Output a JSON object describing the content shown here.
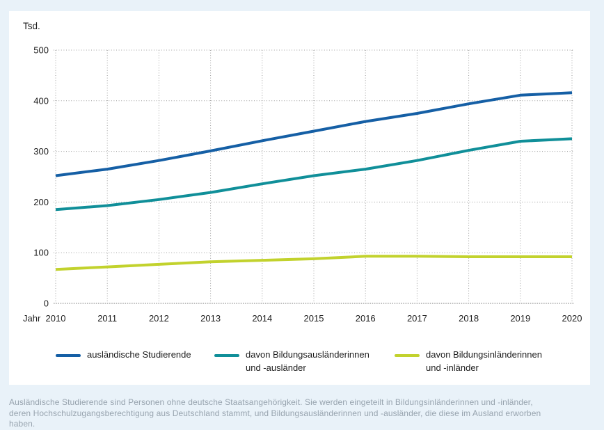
{
  "chart_data": {
    "type": "line",
    "title": "",
    "unit_label": "Tsd.",
    "x_axis_label": "Jahr",
    "categories": [
      "2010",
      "2011",
      "2012",
      "2013",
      "2014",
      "2015",
      "2016",
      "2017",
      "2018",
      "2019",
      "2020"
    ],
    "yticks": [
      0,
      100,
      200,
      300,
      400,
      500
    ],
    "ylim": [
      0,
      500
    ],
    "grid": "dotted",
    "legend_position": "bottom",
    "series": [
      {
        "name": "ausländische Studierende",
        "slug": "auslaendische-studierende",
        "color": "#155fa5",
        "values": [
          252,
          265,
          282,
          301,
          321,
          340,
          359,
          375,
          394,
          411,
          416
        ]
      },
      {
        "name": "davon Bildungsausländerinnen und -ausländer",
        "slug": "bildungsauslaenderinnen-und-auslaender",
        "color": "#108f99",
        "values": [
          185,
          193,
          205,
          219,
          236,
          252,
          265,
          282,
          302,
          320,
          325
        ]
      },
      {
        "name": "davon Bildungsinländerinnen und -inländer",
        "slug": "bildungsinlaenderinnen-und-inlaender",
        "color": "#c2d22d",
        "values": [
          67,
          72,
          77,
          82,
          85,
          88,
          93,
          93,
          92,
          92,
          92
        ]
      }
    ]
  },
  "legend": {
    "items": [
      {
        "line1": "ausländische Studierende",
        "line2": "",
        "color": "#155fa5"
      },
      {
        "line1": "davon Bildungsausländerinnen",
        "line2": "und -ausländer",
        "color": "#108f99"
      },
      {
        "line1": "davon Bildungsinländerinnen",
        "line2": "und -inländer",
        "color": "#c2d22d"
      }
    ]
  },
  "footnote": {
    "lines": [
      "Ausländische Studierende sind Personen ohne deutsche Staatsangehörigkeit. Sie werden eingeteilt in Bildungsinländerinnen und -inländer,",
      "deren Hochschulzugangsberechtigung aus Deutschland stammt, und Bildungsausländerinnen und -ausländer, die diese im Ausland erworben",
      "haben."
    ]
  },
  "colors": {
    "background": "#e9f2f9",
    "panel": "#ffffff",
    "grid": "#9e9e9e",
    "zero_line": "#7d7d7d",
    "text": "#1c1c1c",
    "footnote": "#97a3ae"
  }
}
